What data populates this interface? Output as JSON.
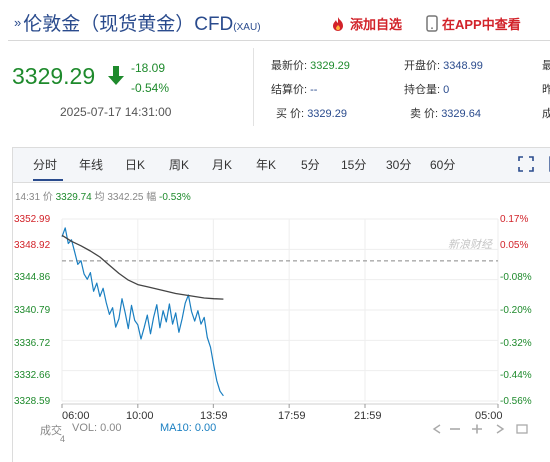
{
  "header": {
    "chevron": "»",
    "title": "伦敦金（现货黄金）CFD",
    "code": "(XAU)",
    "add_watchlist": "添加自选",
    "app_view": "在APP中查看"
  },
  "quote": {
    "price": "3329.29",
    "change": "-18.09",
    "change_pct": "-0.54%",
    "timestamp": "2025-07-17 14:31:00",
    "fields": [
      {
        "label": "最新价:",
        "value": "3329.29"
      },
      {
        "label": "开盘价:",
        "value": "3348.99"
      },
      {
        "label": "结算价:",
        "value": "--"
      },
      {
        "label": "持仓量:",
        "value": "0"
      },
      {
        "label": "买  价:",
        "value": "3329.29"
      },
      {
        "label": "卖  价:",
        "value": "3329.64"
      }
    ],
    "right_edge_labels": [
      "最",
      "昨",
      "成"
    ]
  },
  "tabs": [
    "分时",
    "年线",
    "日K",
    "周K",
    "月K",
    "年K",
    "5分",
    "15分",
    "30分",
    "60分"
  ],
  "active_tab": "分时",
  "info_bar": {
    "time": "14:31",
    "price_label": "价",
    "price": "3329.74",
    "avg_label": "均",
    "avg": "3342.25",
    "amp_label": "幅",
    "amp": "-0.53%"
  },
  "watermark": "新浪财经",
  "chart_data": {
    "type": "line",
    "title": "",
    "xlabel": "",
    "ylabel": "",
    "x_ticks": [
      "06:00",
      "10:00",
      "13:59",
      "17:59",
      "21:59",
      "05:00"
    ],
    "y_ticks_left": [
      "3352.99",
      "3348.92",
      "3344.86",
      "3340.79",
      "3336.72",
      "3332.66",
      "3328.59"
    ],
    "y_ticks_right": [
      "0.17%",
      "0.05%",
      "-0.08%",
      "-0.20%",
      "-0.32%",
      "-0.44%",
      "-0.56%"
    ],
    "ylim": [
      3328.59,
      3352.99
    ],
    "prev_close": 3347.38,
    "grid": true,
    "series": [
      {
        "name": "价",
        "x": [
          "06:00",
          "06:10",
          "06:20",
          "06:30",
          "06:40",
          "06:50",
          "07:00",
          "07:10",
          "07:20",
          "07:30",
          "07:40",
          "07:50",
          "08:00",
          "08:10",
          "08:20",
          "08:30",
          "08:40",
          "08:50",
          "09:00",
          "09:10",
          "09:20",
          "09:30",
          "09:40",
          "09:50",
          "10:00",
          "10:10",
          "10:20",
          "10:30",
          "10:40",
          "10:50",
          "11:00",
          "11:10",
          "11:20",
          "11:30",
          "11:40",
          "11:50",
          "12:00",
          "12:10",
          "12:20",
          "12:30",
          "12:40",
          "12:50",
          "13:00",
          "13:10",
          "13:20",
          "13:30",
          "13:40",
          "13:50",
          "14:00",
          "14:10",
          "14:20",
          "14:31"
        ],
        "values": [
          3350.6,
          3351.8,
          3349.7,
          3350.2,
          3348.6,
          3346.9,
          3347.4,
          3345.6,
          3344.9,
          3345.8,
          3343.3,
          3344.4,
          3342.6,
          3343.7,
          3341.8,
          3340.2,
          3341.1,
          3338.5,
          3339.6,
          3342.3,
          3340.4,
          3338.3,
          3341.4,
          3339.4,
          3338.8,
          3336.9,
          3338.4,
          3340.1,
          3337.6,
          3339.8,
          3341.5,
          3338.4,
          3340.7,
          3339.2,
          3341.6,
          3338.9,
          3340.4,
          3337.8,
          3339.6,
          3341.7,
          3342.8,
          3340.6,
          3339.3,
          3340.7,
          3338.9,
          3339.8,
          3337.1,
          3335.8,
          3333.4,
          3331.3,
          3329.9,
          3329.29
        ]
      },
      {
        "name": "均",
        "x": [
          "06:00",
          "06:30",
          "07:00",
          "07:30",
          "08:00",
          "08:30",
          "09:00",
          "09:30",
          "10:00",
          "10:30",
          "11:00",
          "11:30",
          "12:00",
          "12:30",
          "13:00",
          "13:30",
          "14:00",
          "14:31"
        ],
        "values": [
          3350.8,
          3350.0,
          3349.4,
          3348.7,
          3347.9,
          3346.8,
          3345.7,
          3344.8,
          3344.2,
          3343.9,
          3343.6,
          3343.3,
          3343.0,
          3342.8,
          3342.6,
          3342.4,
          3342.3,
          3342.25
        ]
      }
    ]
  },
  "volume_bar": {
    "label": "成交",
    "sub": "4",
    "vol": "VOL: 0.00",
    "ma10": "MA10: 0.00"
  }
}
